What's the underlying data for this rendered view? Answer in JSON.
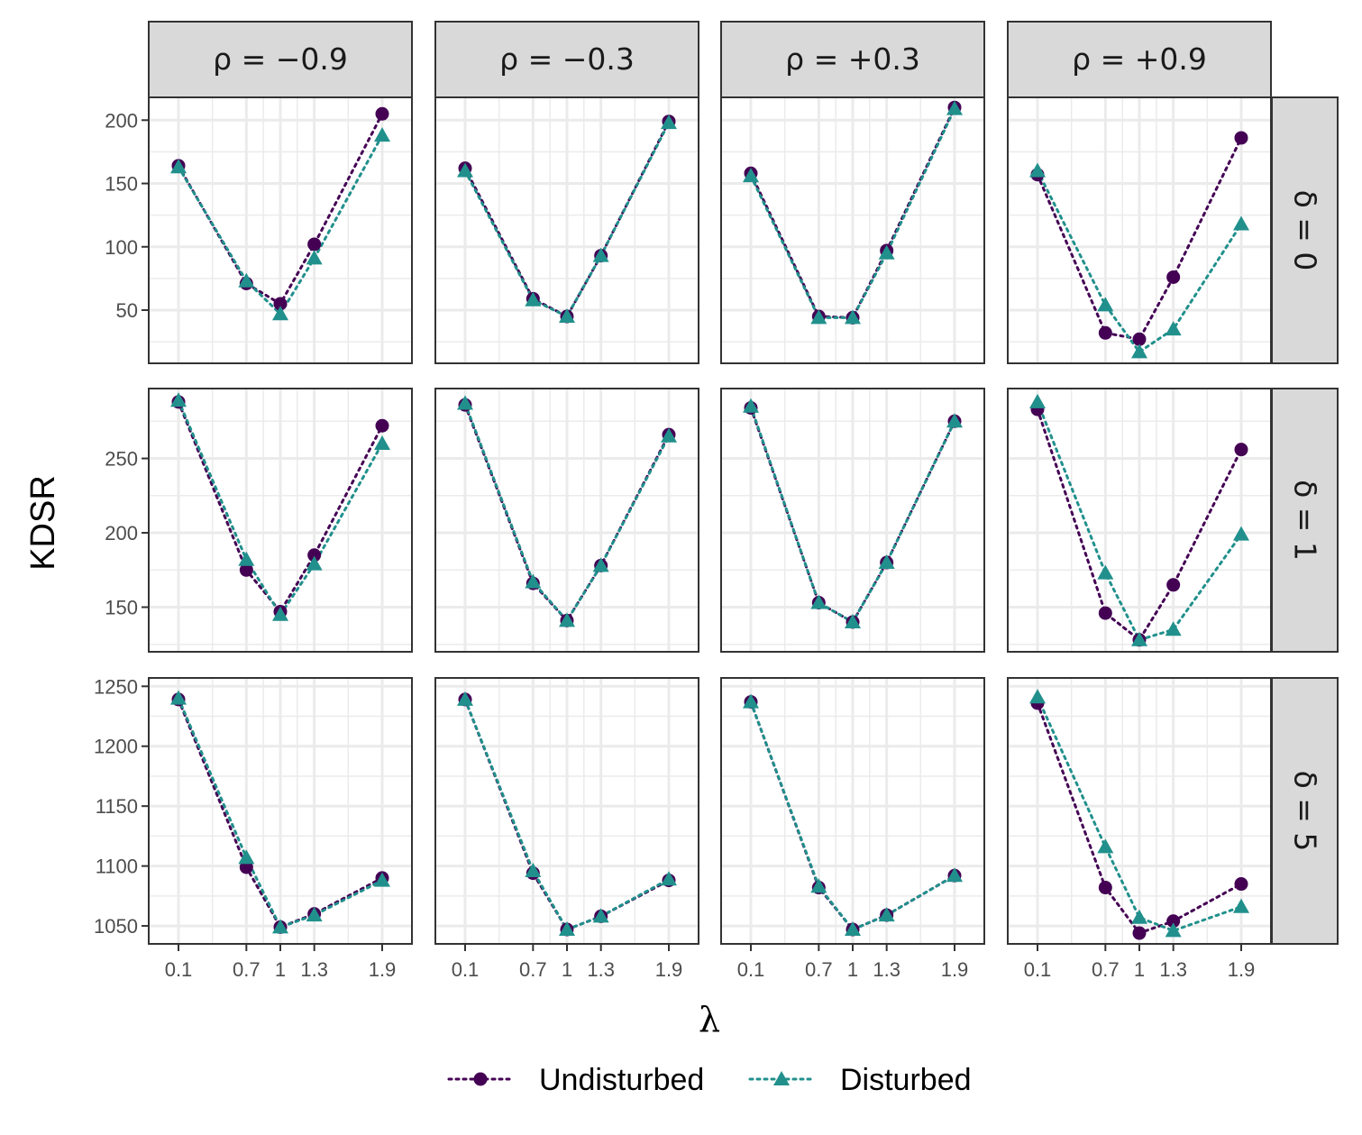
{
  "colors": {
    "undisturbed": "#440154",
    "disturbed": "#21908c"
  },
  "chart_data": {
    "type": "line",
    "xlabel": "λ",
    "ylabel": "KDSR",
    "x": [
      0.1,
      0.7,
      1,
      1.3,
      1.9
    ],
    "x_tick_labels": [
      "0.1",
      "0.7",
      "1",
      "1.3",
      "1.9"
    ],
    "grid": true,
    "legend": "bottom",
    "legend_items": [
      {
        "name": "Undisturbed",
        "marker": "circle",
        "line": "dotted",
        "color": "#440154"
      },
      {
        "name": "Disturbed",
        "marker": "triangle",
        "line": "dotted",
        "color": "#21908c"
      }
    ],
    "columns": [
      "ρ = −0.9",
      "ρ = −0.3",
      "ρ = +0.3",
      "ρ = +0.9"
    ],
    "rows": [
      {
        "label": "δ = 0",
        "ylim": [
          8,
          218
        ],
        "yticks": [
          50,
          100,
          150,
          200
        ],
        "yticklabels": [
          "50",
          "100",
          "150",
          "200"
        ],
        "panels": [
          {
            "undisturbed": [
              164,
              71,
              55,
              102,
              205
            ],
            "disturbed": [
              163,
              73,
              47,
              91,
              188
            ]
          },
          {
            "undisturbed": [
              162,
              59,
              45,
              93,
              199
            ],
            "disturbed": [
              160,
              58,
              45,
              93,
              198
            ]
          },
          {
            "undisturbed": [
              158,
              45,
              44,
              97,
              210
            ],
            "disturbed": [
              156,
              44,
              44,
              95,
              209
            ]
          },
          {
            "undisturbed": [
              157,
              32,
              27,
              76,
              186
            ],
            "disturbed": [
              160,
              54,
              17,
              35,
              118
            ]
          }
        ]
      },
      {
        "label": "δ = 1",
        "ylim": [
          120,
          297
        ],
        "yticks": [
          150,
          200,
          250
        ],
        "yticklabels": [
          "150",
          "200",
          "250"
        ],
        "panels": [
          {
            "undisturbed": [
              288,
              175,
              147,
              185,
              272
            ],
            "disturbed": [
              289,
              182,
              145,
              179,
              260
            ]
          },
          {
            "undisturbed": [
              286,
              166,
              141,
              178,
              266
            ],
            "disturbed": [
              287,
              167,
              141,
              178,
              265
            ]
          },
          {
            "undisturbed": [
              284,
              153,
              140,
              180,
              275
            ],
            "disturbed": [
              285,
              153,
              140,
              180,
              275
            ]
          },
          {
            "undisturbed": [
              283,
              146,
              128,
              165,
              256
            ],
            "disturbed": [
              288,
              173,
              128,
              135,
              199
            ]
          }
        ]
      },
      {
        "label": "δ = 5",
        "ylim": [
          1035,
          1257
        ],
        "yticks": [
          1050,
          1100,
          1150,
          1200,
          1250
        ],
        "yticklabels": [
          "1050",
          "1100",
          "1150",
          "1200",
          "1250"
        ],
        "panels": [
          {
            "undisturbed": [
              1239,
              1099,
              1049,
              1060,
              1090
            ],
            "disturbed": [
              1240,
              1107,
              1049,
              1059,
              1088
            ]
          },
          {
            "undisturbed": [
              1239,
              1094,
              1047,
              1058,
              1088
            ],
            "disturbed": [
              1239,
              1096,
              1047,
              1058,
              1089
            ]
          },
          {
            "undisturbed": [
              1237,
              1082,
              1047,
              1059,
              1092
            ],
            "disturbed": [
              1237,
              1083,
              1047,
              1059,
              1092
            ]
          },
          {
            "undisturbed": [
              1236,
              1082,
              1044,
              1054,
              1085
            ],
            "disturbed": [
              1241,
              1116,
              1057,
              1046,
              1066
            ]
          }
        ]
      }
    ]
  }
}
